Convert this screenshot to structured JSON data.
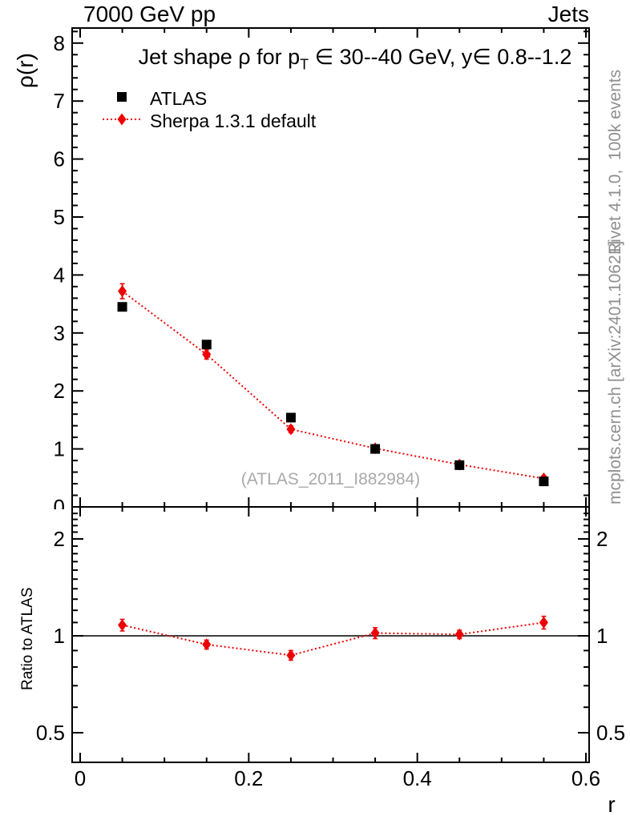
{
  "header": {
    "left": "7000 GeV pp",
    "right": "Jets"
  },
  "title": {
    "pre": "Jet shape ρ for p",
    "sub": "T",
    "post": " ∈ 30--40 GeV, y∈ 0.8--1.2"
  },
  "axis_labels": {
    "y_top": "ρ(r)",
    "y_ratio": "Ratio to ATLAS",
    "x": "r"
  },
  "legend": {
    "items": [
      {
        "label": "ATLAS",
        "marker": "square",
        "color": "#000000"
      },
      {
        "label": "Sherpa 1.3.1 default",
        "marker": "diamond",
        "color": "#ee0000",
        "line": "dotted"
      }
    ]
  },
  "watermark": "(ATLAS_2011_I882984)",
  "side_notes": {
    "top": "Rivet 4.1.0,  100k events",
    "bottom": "mcplots.cern.ch [arXiv:2401.10621]"
  },
  "chart_data": {
    "type": "scatter",
    "title": "Jet shape ρ for pT ∈ 30--40 GeV, y∈ 0.8--1.2",
    "xlabel": "r",
    "x": [
      0.05,
      0.15,
      0.25,
      0.35,
      0.45,
      0.55
    ],
    "xlim": [
      0,
      0.6
    ],
    "xticks": {
      "major": [
        0,
        0.2,
        0.4,
        0.6
      ],
      "labels": [
        "0",
        "0.2",
        "0.4",
        "0.6"
      ],
      "minor_step": 0.05
    },
    "top_panel": {
      "ylabel": "ρ(r)",
      "ylim": [
        0,
        8.26
      ],
      "scale": "linear",
      "yticks_major": [
        0,
        1,
        2,
        3,
        4,
        5,
        6,
        7,
        8
      ],
      "ytick_labels": [
        "0",
        "1",
        "2",
        "3",
        "4",
        "5",
        "6",
        "7",
        "8"
      ],
      "minor_step": 0.2,
      "series": [
        {
          "name": "ATLAS",
          "marker": "square",
          "color": "#000000",
          "values": [
            3.45,
            2.8,
            1.54,
            1.0,
            0.72,
            0.44
          ],
          "errors": [
            0,
            0,
            0,
            0,
            0,
            0
          ]
        },
        {
          "name": "Sherpa 1.3.1 default",
          "marker": "diamond",
          "color": "#ee0000",
          "line": "dotted",
          "values": [
            3.72,
            2.63,
            1.34,
            1.01,
            0.73,
            0.49
          ],
          "errors": [
            0.13,
            0.08,
            0.06,
            0.04,
            0.04,
            0.05
          ]
        }
      ]
    },
    "ratio_panel": {
      "ylabel": "Ratio to ATLAS",
      "scale": "log",
      "ylim": [
        0.404,
        2.51
      ],
      "yticks_major": [
        0.5,
        1,
        2
      ],
      "ytick_labels": [
        "0.5",
        "1",
        "2"
      ],
      "minor_step": 0.1,
      "reference_line": 1.0,
      "series": [
        {
          "name": "Sherpa 1.3.1 default / ATLAS",
          "marker": "diamond",
          "color": "#ee0000",
          "line": "dotted",
          "values": [
            1.08,
            0.94,
            0.87,
            1.02,
            1.01,
            1.1
          ],
          "errors": [
            0.045,
            0.03,
            0.03,
            0.04,
            0.03,
            0.05
          ]
        }
      ]
    }
  }
}
